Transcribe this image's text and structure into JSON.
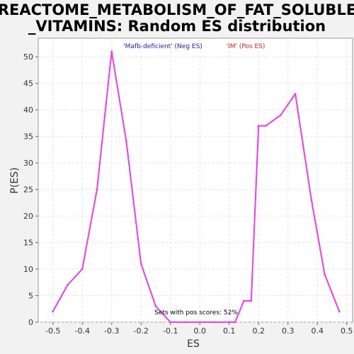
{
  "chart_data": {
    "type": "line",
    "title_line1": "REACTOME_METABOLISM_OF_FAT_SOLUBLE",
    "title_line2": "_VITAMINS: Random ES distribution",
    "xlabel": "ES",
    "ylabel": "P(ES)",
    "xlim": [
      -0.55,
      0.52
    ],
    "ylim": [
      0,
      53.5
    ],
    "xticks": [
      -0.5,
      -0.4,
      -0.3,
      -0.2,
      -0.1,
      0.0,
      0.1,
      0.2,
      0.3,
      0.4,
      0.5
    ],
    "xtick_labels": [
      "-0.5",
      "-0.4",
      "-0.3",
      "-0.2",
      "-0.1",
      "0.0",
      "0.1",
      "0.2",
      "0.3",
      "0.4",
      "0.5"
    ],
    "yticks": [
      0,
      5,
      10,
      15,
      20,
      25,
      30,
      35,
      40,
      45,
      50
    ],
    "ytick_labels": [
      "0",
      "5",
      "10",
      "15",
      "20",
      "25",
      "30",
      "35",
      "40",
      "45",
      "50"
    ],
    "grid": true,
    "legend": {
      "placement": "top",
      "neg_label": "'Mafb-deficient' (Neg ES)",
      "pos_label": "'IM' (Pos ES)",
      "neg_color": "#2020c0",
      "pos_color": "#e02020"
    },
    "annotation": "Sets with pos scores: 52%",
    "series": [
      {
        "color": "#ee3cee",
        "x": [
          -0.5,
          -0.45,
          -0.4,
          -0.35,
          -0.3,
          -0.25,
          -0.2,
          -0.15,
          -0.1,
          -0.05,
          0.0,
          0.05,
          0.1,
          0.12,
          0.15,
          0.175,
          0.2,
          0.225,
          0.275,
          0.325,
          0.38,
          0.425,
          0.475
        ],
        "y": [
          2,
          7,
          10,
          25,
          51,
          34,
          11,
          3,
          0,
          0,
          0,
          0,
          0,
          0,
          4,
          4,
          37,
          37,
          39,
          43,
          23,
          9,
          2
        ]
      }
    ]
  }
}
